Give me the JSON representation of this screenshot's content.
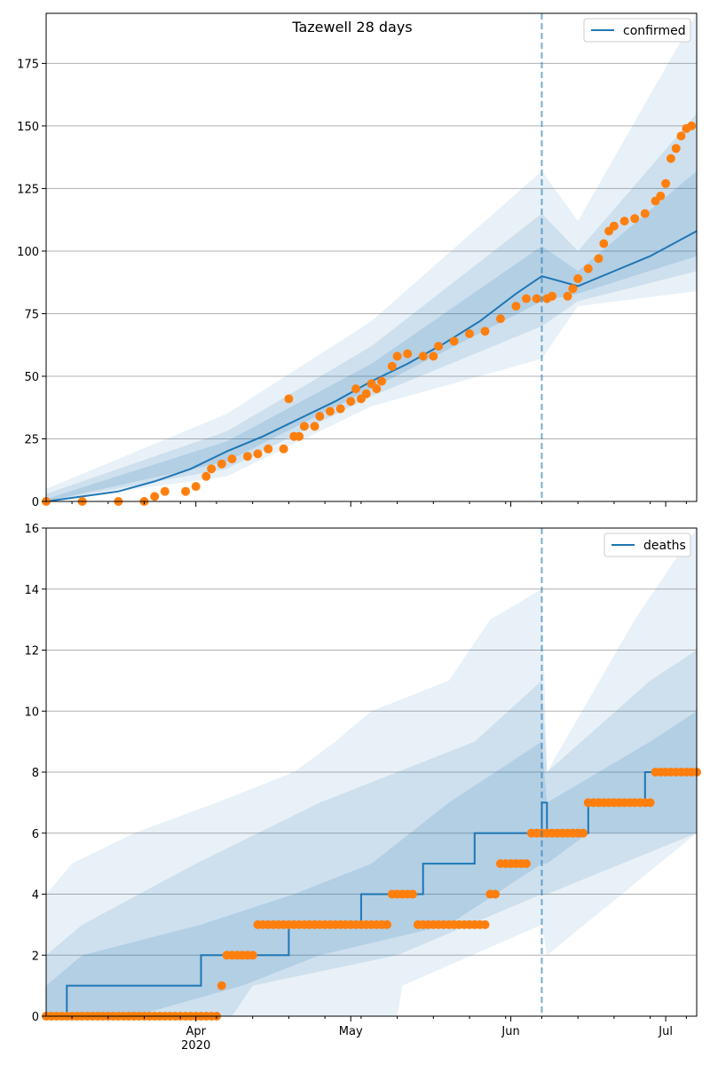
{
  "chart_data": [
    {
      "type": "line",
      "title": "Tazewell 28 days",
      "xlabel": "",
      "ylabel": "",
      "x_range": [
        "2020-03-03",
        "2020-07-07"
      ],
      "ylim": [
        0,
        195
      ],
      "yticks": [
        0,
        25,
        50,
        75,
        100,
        125,
        150,
        175
      ],
      "grid": "y",
      "legend": "top-right",
      "forecast_start": "2020-06-07",
      "series": [
        {
          "name": "confirmed",
          "kind": "model-median",
          "color": "#1f77b4",
          "points": [
            [
              "2020-03-03",
              0
            ],
            [
              "2020-03-10",
              2
            ],
            [
              "2020-03-17",
              4
            ],
            [
              "2020-03-24",
              8
            ],
            [
              "2020-03-31",
              13
            ],
            [
              "2020-04-07",
              20
            ],
            [
              "2020-04-14",
              26
            ],
            [
              "2020-04-21",
              33
            ],
            [
              "2020-04-28",
              40
            ],
            [
              "2020-05-05",
              48
            ],
            [
              "2020-05-12",
              55
            ],
            [
              "2020-05-19",
              63
            ],
            [
              "2020-05-26",
              72
            ],
            [
              "2020-06-02",
              83
            ],
            [
              "2020-06-07",
              90
            ],
            [
              "2020-06-14",
              86
            ],
            [
              "2020-06-21",
              92
            ],
            [
              "2020-06-28",
              98
            ],
            [
              "2020-07-07",
              108
            ]
          ]
        },
        {
          "name": "",
          "kind": "observed",
          "color": "#ff7f0e",
          "points": [
            [
              "2020-03-03",
              0
            ],
            [
              "2020-03-10",
              0
            ],
            [
              "2020-03-17",
              0
            ],
            [
              "2020-03-22",
              0
            ],
            [
              "2020-03-24",
              2
            ],
            [
              "2020-03-26",
              4
            ],
            [
              "2020-03-30",
              4
            ],
            [
              "2020-04-01",
              6
            ],
            [
              "2020-04-03",
              10
            ],
            [
              "2020-04-04",
              13
            ],
            [
              "2020-04-06",
              15
            ],
            [
              "2020-04-08",
              17
            ],
            [
              "2020-04-11",
              18
            ],
            [
              "2020-04-13",
              19
            ],
            [
              "2020-04-15",
              21
            ],
            [
              "2020-04-18",
              21
            ],
            [
              "2020-04-19",
              41
            ],
            [
              "2020-04-20",
              26
            ],
            [
              "2020-04-21",
              26
            ],
            [
              "2020-04-22",
              30
            ],
            [
              "2020-04-24",
              30
            ],
            [
              "2020-04-25",
              34
            ],
            [
              "2020-04-27",
              36
            ],
            [
              "2020-04-29",
              37
            ],
            [
              "2020-05-01",
              40
            ],
            [
              "2020-05-02",
              45
            ],
            [
              "2020-05-03",
              41
            ],
            [
              "2020-05-04",
              43
            ],
            [
              "2020-05-05",
              47
            ],
            [
              "2020-05-06",
              45
            ],
            [
              "2020-05-07",
              48
            ],
            [
              "2020-05-09",
              54
            ],
            [
              "2020-05-10",
              58
            ],
            [
              "2020-05-12",
              59
            ],
            [
              "2020-05-15",
              58
            ],
            [
              "2020-05-17",
              58
            ],
            [
              "2020-05-18",
              62
            ],
            [
              "2020-05-21",
              64
            ],
            [
              "2020-05-24",
              67
            ],
            [
              "2020-05-27",
              68
            ],
            [
              "2020-05-30",
              73
            ],
            [
              "2020-06-02",
              78
            ],
            [
              "2020-06-04",
              81
            ],
            [
              "2020-06-06",
              81
            ],
            [
              "2020-06-08",
              81
            ],
            [
              "2020-06-09",
              82
            ],
            [
              "2020-06-12",
              82
            ],
            [
              "2020-06-13",
              85
            ],
            [
              "2020-06-14",
              89
            ],
            [
              "2020-06-16",
              93
            ],
            [
              "2020-06-18",
              97
            ],
            [
              "2020-06-19",
              103
            ],
            [
              "2020-06-20",
              108
            ],
            [
              "2020-06-21",
              110
            ],
            [
              "2020-06-23",
              112
            ],
            [
              "2020-06-25",
              113
            ],
            [
              "2020-06-27",
              115
            ],
            [
              "2020-06-29",
              120
            ],
            [
              "2020-06-30",
              122
            ],
            [
              "2020-07-01",
              127
            ],
            [
              "2020-07-02",
              137
            ],
            [
              "2020-07-03",
              141
            ],
            [
              "2020-07-04",
              146
            ],
            [
              "2020-07-05",
              149
            ],
            [
              "2020-07-06",
              150
            ]
          ]
        }
      ],
      "bands": [
        {
          "level": "outer",
          "lower": [
            [
              "2020-03-03",
              0
            ],
            [
              "2020-04-07",
              10
            ],
            [
              "2020-05-05",
              38
            ],
            [
              "2020-06-07",
              57
            ],
            [
              "2020-06-14",
              78
            ],
            [
              "2020-07-07",
              84
            ]
          ],
          "upper": [
            [
              "2020-03-03",
              5
            ],
            [
              "2020-04-07",
              35
            ],
            [
              "2020-05-05",
              72
            ],
            [
              "2020-06-07",
              132
            ],
            [
              "2020-06-14",
              112
            ],
            [
              "2020-07-07",
              195
            ]
          ]
        },
        {
          "level": "middle",
          "lower": [
            [
              "2020-03-03",
              0
            ],
            [
              "2020-04-07",
              13
            ],
            [
              "2020-05-05",
              42
            ],
            [
              "2020-06-07",
              70
            ],
            [
              "2020-06-14",
              80
            ],
            [
              "2020-07-07",
              92
            ]
          ],
          "upper": [
            [
              "2020-03-03",
              3
            ],
            [
              "2020-04-07",
              28
            ],
            [
              "2020-05-05",
              62
            ],
            [
              "2020-06-07",
              115
            ],
            [
              "2020-06-14",
              100
            ],
            [
              "2020-07-07",
              155
            ]
          ]
        },
        {
          "level": "inner",
          "lower": [
            [
              "2020-03-03",
              0
            ],
            [
              "2020-04-07",
              16
            ],
            [
              "2020-05-05",
              45
            ],
            [
              "2020-06-07",
              80
            ],
            [
              "2020-06-14",
              83
            ],
            [
              "2020-07-07",
              98
            ]
          ],
          "upper": [
            [
              "2020-03-03",
              1
            ],
            [
              "2020-04-07",
              24
            ],
            [
              "2020-05-05",
              55
            ],
            [
              "2020-06-07",
              102
            ],
            [
              "2020-06-14",
              92
            ],
            [
              "2020-07-07",
              132
            ]
          ]
        }
      ]
    },
    {
      "type": "line",
      "title": "",
      "xlabel": "",
      "ylabel": "",
      "x_range": [
        "2020-03-03",
        "2020-07-07"
      ],
      "ylim": [
        0,
        16
      ],
      "yticks": [
        0,
        2,
        4,
        6,
        8,
        10,
        12,
        14,
        16
      ],
      "xticks": [
        {
          "date": "2020-04-01",
          "label": "Apr",
          "sublabel": "2020"
        },
        {
          "date": "2020-05-01",
          "label": "May",
          "sublabel": ""
        },
        {
          "date": "2020-06-01",
          "label": "Jun",
          "sublabel": ""
        },
        {
          "date": "2020-07-01",
          "label": "Jul",
          "sublabel": ""
        }
      ],
      "grid": "y",
      "legend": "top-right",
      "forecast_start": "2020-06-07",
      "series": [
        {
          "name": "deaths",
          "kind": "model-median",
          "color": "#1f77b4",
          "steps": [
            [
              "2020-03-03",
              0
            ],
            [
              "2020-03-07",
              1
            ],
            [
              "2020-04-02",
              2
            ],
            [
              "2020-04-19",
              3
            ],
            [
              "2020-05-03",
              4
            ],
            [
              "2020-05-15",
              5
            ],
            [
              "2020-05-25",
              6
            ],
            [
              "2020-06-07",
              7
            ],
            [
              "2020-06-08",
              6
            ],
            [
              "2020-06-16",
              7
            ],
            [
              "2020-06-27",
              8
            ],
            [
              "2020-07-07",
              8
            ]
          ]
        },
        {
          "name": "",
          "kind": "observed",
          "color": "#ff7f0e",
          "runs": [
            [
              "2020-03-03",
              "2020-04-05",
              0
            ],
            [
              "2020-04-06",
              "2020-04-06",
              1
            ],
            [
              "2020-04-07",
              "2020-04-12",
              2
            ],
            [
              "2020-04-13",
              "2020-05-08",
              3
            ],
            [
              "2020-05-09",
              "2020-05-13",
              4
            ],
            [
              "2020-05-14",
              "2020-05-27",
              3
            ],
            [
              "2020-05-28",
              "2020-05-29",
              4
            ],
            [
              "2020-05-30",
              "2020-06-04",
              5
            ],
            [
              "2020-06-05",
              "2020-06-15",
              6
            ],
            [
              "2020-06-16",
              "2020-06-28",
              7
            ],
            [
              "2020-06-29",
              "2020-07-07",
              8
            ]
          ]
        }
      ],
      "bands": [
        {
          "level": "outer",
          "lower": [
            [
              "2020-03-03",
              0
            ],
            [
              "2020-05-10",
              0
            ],
            [
              "2020-05-11",
              1
            ],
            [
              "2020-06-07",
              3
            ],
            [
              "2020-06-08",
              2
            ],
            [
              "2020-07-07",
              6
            ]
          ],
          "upper": [
            [
              "2020-03-03",
              4
            ],
            [
              "2020-03-08",
              5
            ],
            [
              "2020-03-20",
              6
            ],
            [
              "2020-04-05",
              7
            ],
            [
              "2020-04-20",
              8
            ],
            [
              "2020-04-28",
              9
            ],
            [
              "2020-05-05",
              10
            ],
            [
              "2020-05-20",
              11
            ],
            [
              "2020-05-28",
              13
            ],
            [
              "2020-06-07",
              14
            ],
            [
              "2020-06-08",
              8
            ],
            [
              "2020-06-25",
              13
            ],
            [
              "2020-07-07",
              16
            ]
          ]
        },
        {
          "level": "middle",
          "lower": [
            [
              "2020-03-03",
              0
            ],
            [
              "2020-04-08",
              0
            ],
            [
              "2020-04-12",
              1
            ],
            [
              "2020-05-10",
              2
            ],
            [
              "2020-06-07",
              4
            ],
            [
              "2020-06-08",
              4
            ],
            [
              "2020-07-07",
              6
            ]
          ],
          "upper": [
            [
              "2020-03-03",
              2
            ],
            [
              "2020-03-10",
              3
            ],
            [
              "2020-04-01",
              5
            ],
            [
              "2020-04-25",
              7
            ],
            [
              "2020-05-10",
              8
            ],
            [
              "2020-05-25",
              9
            ],
            [
              "2020-06-07",
              11
            ],
            [
              "2020-06-08",
              8
            ],
            [
              "2020-06-28",
              11
            ],
            [
              "2020-07-07",
              12
            ]
          ]
        },
        {
          "level": "inner",
          "lower": [
            [
              "2020-03-03",
              0
            ],
            [
              "2020-03-20",
              0
            ],
            [
              "2020-04-10",
              1
            ],
            [
              "2020-04-25",
              2
            ],
            [
              "2020-05-20",
              3
            ],
            [
              "2020-06-07",
              5
            ],
            [
              "2020-06-08",
              5
            ],
            [
              "2020-06-16",
              6
            ],
            [
              "2020-07-07",
              6
            ]
          ],
          "upper": [
            [
              "2020-03-03",
              1
            ],
            [
              "2020-03-10",
              2
            ],
            [
              "2020-04-02",
              3
            ],
            [
              "2020-04-20",
              4
            ],
            [
              "2020-05-05",
              5
            ],
            [
              "2020-05-20",
              7
            ],
            [
              "2020-06-07",
              9
            ],
            [
              "2020-06-08",
              7
            ],
            [
              "2020-06-28",
              9
            ],
            [
              "2020-07-07",
              10
            ]
          ]
        }
      ]
    }
  ]
}
